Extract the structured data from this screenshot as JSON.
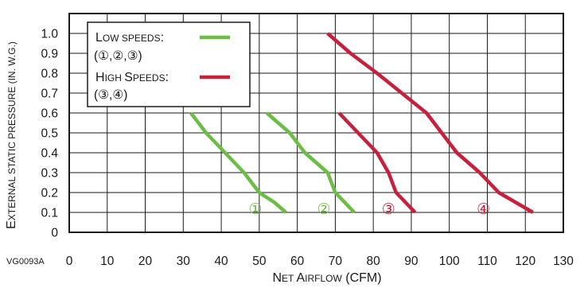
{
  "figure_code": "VG0093A",
  "chart_data": {
    "type": "line",
    "xlabel": {
      "first": "N",
      "first_small": "ET ",
      "second": "A",
      "second_small": "IRFLOW",
      "unit": " (CFM)"
    },
    "ylabel": {
      "first": "E",
      "first_small": "XTERNAL STATIC PRESSURE",
      "unit_small": " (IN. W.G.)"
    },
    "xlim": [
      0,
      130
    ],
    "ylim": [
      0,
      1.1
    ],
    "x_ticks": [
      {
        "value": 0,
        "label": "0"
      },
      {
        "value": 10,
        "label": "10"
      },
      {
        "value": 20,
        "label": "20"
      },
      {
        "value": 30,
        "label": "30"
      },
      {
        "value": 40,
        "label": "40"
      },
      {
        "value": 50,
        "label": "50"
      },
      {
        "value": 60,
        "label": "60"
      },
      {
        "value": 70,
        "label": "70"
      },
      {
        "value": 80,
        "label": "80"
      },
      {
        "value": 90,
        "label": "90"
      },
      {
        "value": 100,
        "label": "100"
      },
      {
        "value": 110,
        "label": "110"
      },
      {
        "value": 120,
        "label": "120"
      },
      {
        "value": 130,
        "label": "130"
      }
    ],
    "y_ticks": [
      {
        "value": 0,
        "label": "0"
      },
      {
        "value": 0.1,
        "label": "0.1"
      },
      {
        "value": 0.2,
        "label": "0.2"
      },
      {
        "value": 0.3,
        "label": "0.3"
      },
      {
        "value": 0.4,
        "label": "0.4"
      },
      {
        "value": 0.5,
        "label": "0.5"
      },
      {
        "value": 0.6,
        "label": "0.6"
      },
      {
        "value": 0.7,
        "label": "0.7"
      },
      {
        "value": 0.8,
        "label": "0.8"
      },
      {
        "value": 0.9,
        "label": "0.9"
      },
      {
        "value": 1.0,
        "label": "1.0"
      }
    ],
    "grid": true,
    "legend": {
      "position": "top-left",
      "entries": [
        {
          "first": "L",
          "first_small": "OW SPEEDS",
          "suffix": ":",
          "codes": "(①,②,③)",
          "color": "#6cbd45"
        },
        {
          "first": "H",
          "first_small": "IGH ",
          "second": "S",
          "second_small": "PEEDS",
          "suffix": ":",
          "codes": "(③,④)",
          "color": "#c8203c"
        }
      ]
    },
    "series": [
      {
        "marker": "①",
        "group": "low",
        "color": "#6cbd45",
        "points": [
          [
            32,
            0.6
          ],
          [
            36,
            0.5
          ],
          [
            41,
            0.4
          ],
          [
            46,
            0.3
          ],
          [
            50,
            0.2
          ],
          [
            54,
            0.15
          ],
          [
            57,
            0.1
          ]
        ],
        "label_at": [
          49,
          0.12
        ]
      },
      {
        "marker": "②",
        "group": "low",
        "color": "#6cbd45",
        "points": [
          [
            52,
            0.6
          ],
          [
            58,
            0.5
          ],
          [
            62,
            0.4
          ],
          [
            68,
            0.3
          ],
          [
            70,
            0.2
          ],
          [
            75,
            0.1
          ]
        ],
        "label_at": [
          67,
          0.12
        ]
      },
      {
        "marker": "③",
        "group": "high",
        "color": "#c8203c",
        "points": [
          [
            71,
            0.6
          ],
          [
            81,
            0.4
          ],
          [
            84,
            0.3
          ],
          [
            86,
            0.2
          ],
          [
            91,
            0.1
          ]
        ],
        "label_at": [
          84,
          0.12
        ]
      },
      {
        "marker": "④",
        "group": "high",
        "color": "#c8203c",
        "points": [
          [
            68,
            1.0
          ],
          [
            74,
            0.9
          ],
          [
            81,
            0.8
          ],
          [
            94,
            0.6
          ],
          [
            102,
            0.4
          ],
          [
            108,
            0.3
          ],
          [
            113,
            0.2
          ],
          [
            122,
            0.1
          ]
        ],
        "label_at": [
          109,
          0.12
        ]
      }
    ]
  }
}
